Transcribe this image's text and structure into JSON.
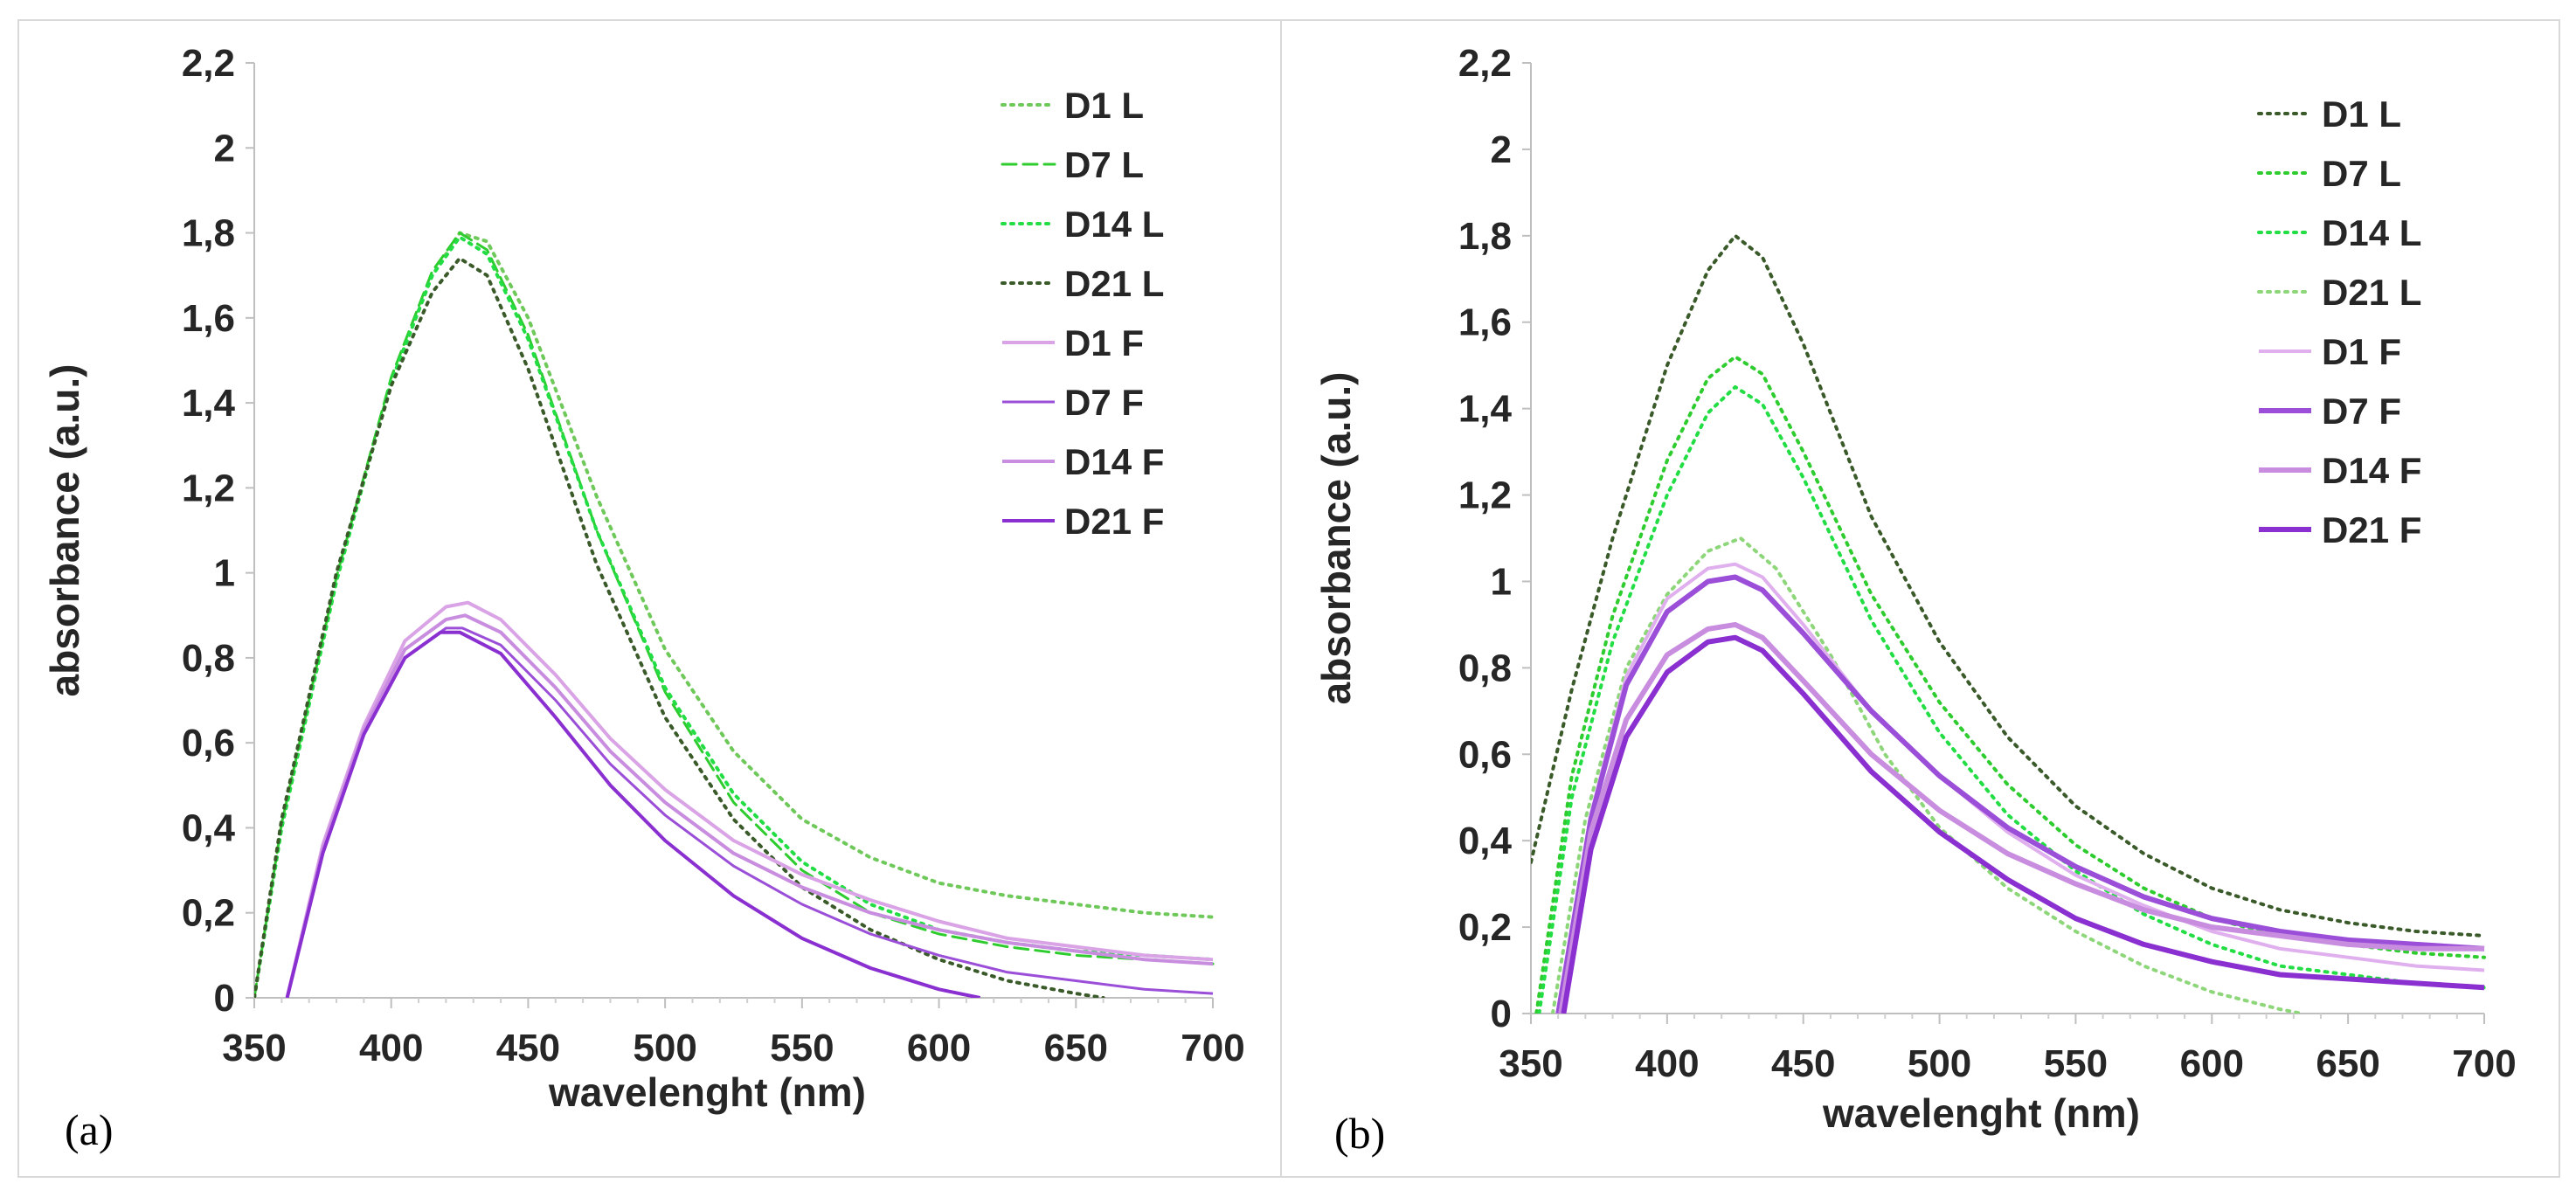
{
  "chart_data": [
    {
      "type": "line",
      "panel_label": "(a)",
      "xlabel": "wavelenght (nm)",
      "ylabel": "absorbance (a.u.)",
      "xlim": [
        350,
        700
      ],
      "ylim": [
        0,
        2.2
      ],
      "x_ticks": [
        350,
        400,
        450,
        500,
        550,
        600,
        650,
        700
      ],
      "x_tick_labels": [
        "350",
        "400",
        "450",
        "500",
        "550",
        "600",
        "650",
        "700"
      ],
      "y_ticks": [
        0,
        0.2,
        0.4,
        0.6,
        0.8,
        1,
        1.2,
        1.4,
        1.6,
        1.8,
        2,
        2.2
      ],
      "y_tick_labels": [
        "0",
        "0,2",
        "0,4",
        "0,6",
        "0,8",
        "1",
        "1,2",
        "1,4",
        "1,6",
        "1,8",
        "2",
        "2,2"
      ],
      "grid": false,
      "legend_position": "top-right",
      "series": [
        {
          "name": "D1 L",
          "color": "#6fc95a",
          "dash": "dot",
          "width": 4,
          "x": [
            350,
            360,
            380,
            400,
            415,
            425,
            435,
            450,
            475,
            500,
            525,
            550,
            575,
            600,
            625,
            650,
            675,
            700
          ],
          "y": [
            0.0,
            0.4,
            0.98,
            1.45,
            1.7,
            1.8,
            1.78,
            1.6,
            1.18,
            0.82,
            0.58,
            0.42,
            0.33,
            0.27,
            0.24,
            0.22,
            0.2,
            0.19
          ]
        },
        {
          "name": "D7 L",
          "color": "#2ecc2e",
          "dash": "dash",
          "width": 3,
          "x": [
            350,
            360,
            380,
            400,
            415,
            425,
            435,
            450,
            475,
            500,
            525,
            550,
            575,
            600,
            625,
            650,
            675,
            700
          ],
          "y": [
            0.0,
            0.41,
            0.99,
            1.46,
            1.71,
            1.8,
            1.76,
            1.56,
            1.1,
            0.72,
            0.46,
            0.3,
            0.2,
            0.15,
            0.12,
            0.1,
            0.09,
            0.08
          ]
        },
        {
          "name": "D14 L",
          "color": "#22dd44",
          "dash": "dot",
          "width": 4,
          "x": [
            350,
            360,
            380,
            400,
            415,
            425,
            435,
            450,
            475,
            500,
            525,
            550,
            575,
            600,
            625,
            650,
            675,
            700
          ],
          "y": [
            0.0,
            0.4,
            0.98,
            1.45,
            1.7,
            1.79,
            1.75,
            1.55,
            1.1,
            0.73,
            0.48,
            0.32,
            0.22,
            0.16,
            0.13,
            0.11,
            0.1,
            0.09
          ]
        },
        {
          "name": "D21 L",
          "color": "#3a5a2a",
          "dash": "dot",
          "width": 4,
          "x": [
            350,
            360,
            380,
            400,
            415,
            425,
            435,
            450,
            475,
            500,
            525,
            550,
            575,
            600,
            625,
            650,
            660
          ],
          "y": [
            0.0,
            0.42,
            1.0,
            1.44,
            1.66,
            1.74,
            1.7,
            1.48,
            1.02,
            0.66,
            0.42,
            0.26,
            0.16,
            0.09,
            0.04,
            0.01,
            0.0
          ]
        },
        {
          "name": "D1 F",
          "color": "#d9a3e6",
          "dash": "solid",
          "width": 4,
          "x": [
            362,
            375,
            390,
            405,
            420,
            428,
            440,
            460,
            480,
            500,
            525,
            550,
            575,
            600,
            625,
            650,
            675,
            700
          ],
          "y": [
            0.0,
            0.36,
            0.64,
            0.84,
            0.92,
            0.93,
            0.89,
            0.76,
            0.61,
            0.49,
            0.37,
            0.29,
            0.23,
            0.18,
            0.14,
            0.12,
            0.1,
            0.09
          ]
        },
        {
          "name": "D7 F",
          "color": "#9b4fd8",
          "dash": "solid",
          "width": 3,
          "x": [
            362,
            375,
            390,
            405,
            420,
            426,
            440,
            460,
            480,
            500,
            525,
            550,
            575,
            600,
            625,
            650,
            675,
            700
          ],
          "y": [
            0.0,
            0.34,
            0.62,
            0.8,
            0.87,
            0.87,
            0.83,
            0.7,
            0.55,
            0.43,
            0.31,
            0.22,
            0.15,
            0.1,
            0.06,
            0.04,
            0.02,
            0.01
          ]
        },
        {
          "name": "D14 F",
          "color": "#c98de0",
          "dash": "solid",
          "width": 4,
          "x": [
            362,
            375,
            390,
            405,
            420,
            427,
            440,
            460,
            480,
            500,
            525,
            550,
            575,
            600,
            625,
            650,
            675,
            700
          ],
          "y": [
            0.0,
            0.35,
            0.63,
            0.82,
            0.89,
            0.9,
            0.86,
            0.73,
            0.58,
            0.46,
            0.34,
            0.26,
            0.2,
            0.16,
            0.13,
            0.11,
            0.09,
            0.08
          ]
        },
        {
          "name": "D21 F",
          "color": "#8a2fd0",
          "dash": "solid",
          "width": 4,
          "x": [
            362,
            375,
            390,
            405,
            418,
            425,
            440,
            460,
            480,
            500,
            525,
            550,
            575,
            600,
            615
          ],
          "y": [
            0.0,
            0.34,
            0.62,
            0.8,
            0.86,
            0.86,
            0.81,
            0.66,
            0.5,
            0.37,
            0.24,
            0.14,
            0.07,
            0.02,
            0.0
          ]
        }
      ]
    },
    {
      "type": "line",
      "panel_label": "(b)",
      "xlabel": "wavelenght (nm)",
      "ylabel": "absorbance (a.u.)",
      "xlim": [
        350,
        700
      ],
      "ylim": [
        0,
        2.2
      ],
      "x_ticks": [
        350,
        400,
        450,
        500,
        550,
        600,
        650,
        700
      ],
      "x_tick_labels": [
        "350",
        "400",
        "450",
        "500",
        "550",
        "600",
        "650",
        "700"
      ],
      "y_ticks": [
        0,
        0.2,
        0.4,
        0.6,
        0.8,
        1,
        1.2,
        1.4,
        1.6,
        1.8,
        2,
        2.2
      ],
      "y_tick_labels": [
        "0",
        "0,2",
        "0,4",
        "0,6",
        "0,8",
        "1",
        "1,2",
        "1,4",
        "1,6",
        "1,8",
        "2",
        "2,2"
      ],
      "grid": false,
      "legend_position": "top-right",
      "series": [
        {
          "name": "D1 L",
          "color": "#3a5a2a",
          "dash": "dot",
          "width": 4,
          "x": [
            350,
            365,
            380,
            400,
            415,
            425,
            435,
            450,
            475,
            500,
            525,
            550,
            575,
            600,
            625,
            650,
            675,
            700
          ],
          "y": [
            0.35,
            0.75,
            1.1,
            1.5,
            1.72,
            1.8,
            1.75,
            1.55,
            1.15,
            0.86,
            0.64,
            0.48,
            0.37,
            0.29,
            0.24,
            0.21,
            0.19,
            0.18
          ]
        },
        {
          "name": "D7 L",
          "color": "#2ecc2e",
          "dash": "dot",
          "width": 4,
          "x": [
            352,
            365,
            380,
            400,
            415,
            425,
            435,
            450,
            475,
            500,
            525,
            550,
            575,
            600,
            625,
            650,
            675,
            700
          ],
          "y": [
            0.0,
            0.55,
            0.92,
            1.28,
            1.47,
            1.52,
            1.48,
            1.3,
            0.97,
            0.72,
            0.53,
            0.39,
            0.29,
            0.22,
            0.18,
            0.16,
            0.14,
            0.13
          ]
        },
        {
          "name": "D14 L",
          "color": "#22dd44",
          "dash": "dot",
          "width": 4,
          "x": [
            353,
            365,
            380,
            400,
            415,
            425,
            435,
            450,
            475,
            500,
            525,
            550,
            575,
            600,
            625,
            650,
            675,
            700
          ],
          "y": [
            0.0,
            0.5,
            0.86,
            1.2,
            1.39,
            1.45,
            1.41,
            1.24,
            0.91,
            0.65,
            0.46,
            0.33,
            0.23,
            0.16,
            0.11,
            0.09,
            0.07,
            0.06
          ]
        },
        {
          "name": "D21 L",
          "color": "#8ed67a",
          "dash": "dot",
          "width": 4,
          "x": [
            358,
            370,
            385,
            400,
            415,
            427,
            440,
            460,
            480,
            500,
            525,
            550,
            575,
            600,
            625,
            633
          ],
          "y": [
            0.0,
            0.45,
            0.8,
            0.97,
            1.07,
            1.1,
            1.03,
            0.83,
            0.6,
            0.43,
            0.29,
            0.19,
            0.11,
            0.05,
            0.01,
            0.0
          ]
        },
        {
          "name": "D1 F",
          "color": "#e0b0ee",
          "dash": "solid",
          "width": 4,
          "x": [
            360,
            372,
            385,
            400,
            415,
            425,
            435,
            450,
            475,
            500,
            525,
            550,
            575,
            600,
            625,
            650,
            675,
            700
          ],
          "y": [
            0.0,
            0.46,
            0.78,
            0.96,
            1.03,
            1.04,
            1.01,
            0.9,
            0.7,
            0.55,
            0.42,
            0.32,
            0.25,
            0.19,
            0.15,
            0.13,
            0.11,
            0.1
          ]
        },
        {
          "name": "D7 F",
          "color": "#9b4fd8",
          "dash": "solid",
          "width": 6,
          "x": [
            360,
            372,
            385,
            400,
            415,
            425,
            435,
            450,
            475,
            500,
            525,
            550,
            575,
            600,
            625,
            650,
            675,
            700
          ],
          "y": [
            0.0,
            0.45,
            0.76,
            0.93,
            1.0,
            1.01,
            0.98,
            0.88,
            0.7,
            0.55,
            0.43,
            0.34,
            0.27,
            0.22,
            0.19,
            0.17,
            0.16,
            0.15
          ]
        },
        {
          "name": "D14 F",
          "color": "#c98de0",
          "dash": "solid",
          "width": 6,
          "x": [
            361,
            372,
            385,
            400,
            415,
            425,
            435,
            450,
            475,
            500,
            525,
            550,
            575,
            600,
            625,
            650,
            675,
            700
          ],
          "y": [
            0.0,
            0.42,
            0.68,
            0.83,
            0.89,
            0.9,
            0.87,
            0.77,
            0.6,
            0.47,
            0.37,
            0.3,
            0.24,
            0.2,
            0.18,
            0.16,
            0.15,
            0.15
          ]
        },
        {
          "name": "D21 F",
          "color": "#8a2fd0",
          "dash": "solid",
          "width": 6,
          "x": [
            362,
            372,
            385,
            400,
            415,
            425,
            435,
            450,
            475,
            500,
            525,
            550,
            575,
            600,
            625,
            650,
            675,
            700
          ],
          "y": [
            0.0,
            0.38,
            0.64,
            0.79,
            0.86,
            0.87,
            0.84,
            0.74,
            0.56,
            0.42,
            0.31,
            0.22,
            0.16,
            0.12,
            0.09,
            0.08,
            0.07,
            0.06
          ]
        }
      ]
    }
  ]
}
